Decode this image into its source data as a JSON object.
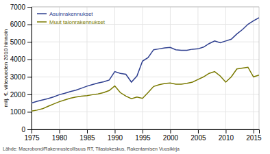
{
  "chart_data": {
    "type": "line",
    "title": "",
    "ylabel": "milj. €, viitevuoden 2010 hinnoin",
    "annotations": [
      "Lähde: Macrobond/Rakennusteollisuus RT, Tilastokeskus, Rakentamisen Vuosikirja"
    ],
    "x": [
      1975,
      1976,
      1977,
      1978,
      1979,
      1980,
      1981,
      1982,
      1983,
      1984,
      1985,
      1986,
      1987,
      1988,
      1989,
      1990,
      1991,
      1992,
      1993,
      1994,
      1995,
      1996,
      1997,
      1998,
      1999,
      2000,
      2001,
      2002,
      2003,
      2004,
      2005,
      2006,
      2007,
      2008,
      2009,
      2010,
      2011,
      2012,
      2013,
      2014,
      2015,
      2016
    ],
    "series": [
      {
        "name": "Asuinrakennukset",
        "color": "#2e3f8f",
        "values": [
          1500,
          1600,
          1680,
          1760,
          1860,
          1980,
          2060,
          2160,
          2240,
          2350,
          2470,
          2560,
          2650,
          2720,
          2820,
          3300,
          3200,
          3150,
          2700,
          3050,
          3900,
          4100,
          4550,
          4600,
          4650,
          4680,
          4550,
          4520,
          4520,
          4580,
          4600,
          4700,
          4900,
          5050,
          4950,
          5050,
          5150,
          5450,
          5700,
          6000,
          6200,
          6380
        ]
      },
      {
        "name": "Muut talonrakennukset",
        "color": "#7a7a00",
        "values": [
          1050,
          1100,
          1180,
          1320,
          1450,
          1580,
          1680,
          1780,
          1850,
          1900,
          1930,
          1980,
          2020,
          2100,
          2220,
          2480,
          2100,
          1900,
          1750,
          1850,
          1770,
          2100,
          2450,
          2550,
          2620,
          2650,
          2580,
          2580,
          2630,
          2700,
          2850,
          3000,
          3200,
          3300,
          3050,
          2700,
          3000,
          3450,
          3500,
          3550,
          3000,
          3100
        ]
      }
    ],
    "xlim": [
      1975,
      2016
    ],
    "xticks": [
      1975,
      1980,
      1985,
      1990,
      1995,
      2000,
      2005,
      2010,
      2015
    ],
    "ylim": [
      0,
      7000
    ],
    "yticks": [
      0,
      1000,
      2000,
      3000,
      4000,
      5000,
      6000,
      7000
    ],
    "grid": true,
    "legend": "upper left"
  }
}
